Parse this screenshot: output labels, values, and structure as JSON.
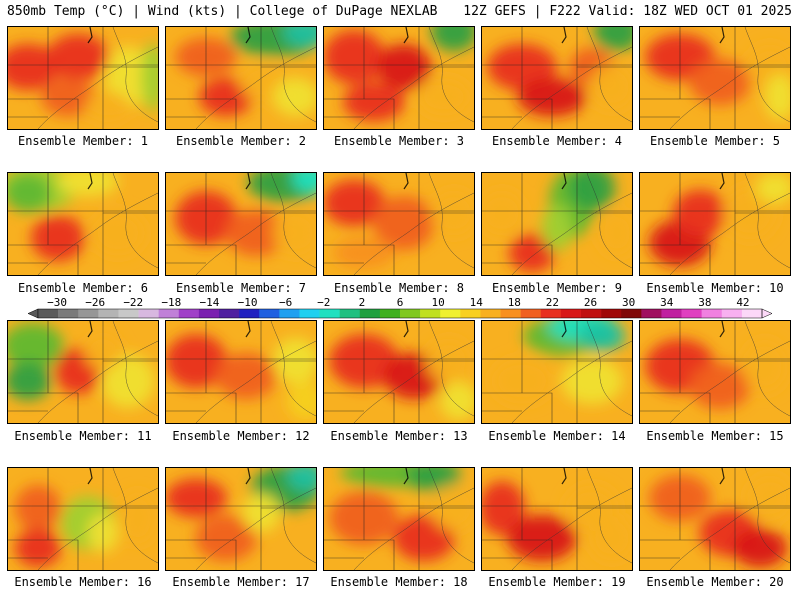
{
  "header": {
    "left": "850mb Temp (°C) | Wind (kts) | College of DuPage NEXLAB",
    "right": "12Z GEFS | F222 Valid: 18Z WED OCT 01 2025"
  },
  "colorbar": {
    "tick_labels": [
      "−30",
      "−26",
      "−22",
      "−18",
      "−14",
      "−10",
      "−6",
      "−2",
      "2",
      "6",
      "10",
      "14",
      "18",
      "22",
      "26",
      "30",
      "34",
      "38",
      "42"
    ],
    "tick_values": [
      -30,
      -26,
      -22,
      -18,
      -14,
      -10,
      -6,
      -2,
      2,
      6,
      10,
      14,
      18,
      22,
      26,
      30,
      34,
      38,
      42
    ],
    "range": [
      -32,
      44
    ],
    "colors": [
      "#5a5a5a",
      "#7a7a7a",
      "#969696",
      "#b4b4b4",
      "#c8c8c8",
      "#d8b8e0",
      "#c080d8",
      "#a040c8",
      "#7a20b0",
      "#5020a0",
      "#2020c0",
      "#2060e0",
      "#20a0f0",
      "#20d0f0",
      "#20e0c0",
      "#20c080",
      "#20a040",
      "#40b020",
      "#80c820",
      "#c0e020",
      "#f0f030",
      "#f8d020",
      "#f8b020",
      "#f89020",
      "#f06020",
      "#e83020",
      "#d81818",
      "#c01010",
      "#a00808",
      "#800808",
      "#a01060",
      "#c020a0",
      "#e040c0",
      "#f080e0",
      "#f8b0f0",
      "#fcd8f8"
    ]
  },
  "members": [
    {
      "label": "Ensemble Member: 1"
    },
    {
      "label": "Ensemble Member: 2"
    },
    {
      "label": "Ensemble Member: 3"
    },
    {
      "label": "Ensemble Member: 4"
    },
    {
      "label": "Ensemble Member: 5"
    },
    {
      "label": "Ensemble Member: 6"
    },
    {
      "label": "Ensemble Member: 7"
    },
    {
      "label": "Ensemble Member: 8"
    },
    {
      "label": "Ensemble Member: 9"
    },
    {
      "label": "Ensemble Member: 10"
    },
    {
      "label": "Ensemble Member: 11"
    },
    {
      "label": "Ensemble Member: 12"
    },
    {
      "label": "Ensemble Member: 13"
    },
    {
      "label": "Ensemble Member: 14"
    },
    {
      "label": "Ensemble Member: 15"
    },
    {
      "label": "Ensemble Member: 16"
    },
    {
      "label": "Ensemble Member: 17"
    },
    {
      "label": "Ensemble Member: 18"
    },
    {
      "label": "Ensemble Member: 19"
    },
    {
      "label": "Ensemble Member: 20"
    }
  ]
}
